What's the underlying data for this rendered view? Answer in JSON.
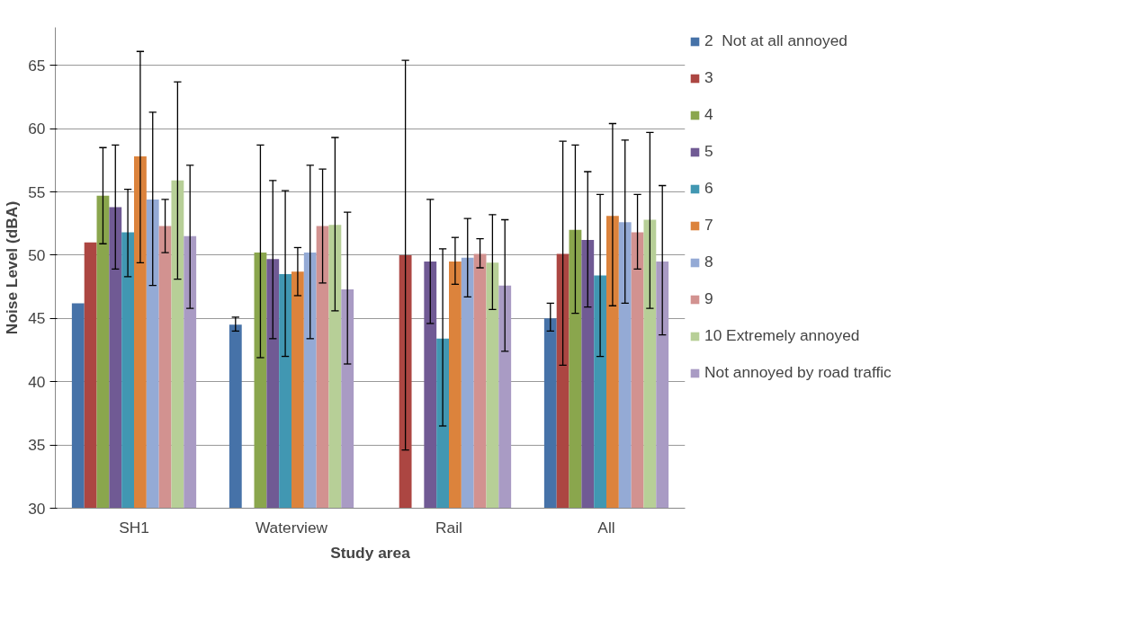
{
  "chart_data": {
    "type": "bar",
    "xlabel": "Study area",
    "ylabel": "Noise Level (dBA)",
    "categories": [
      "SH1",
      "Waterview",
      "Rail",
      "All"
    ],
    "ylim": [
      30,
      68
    ],
    "yticks": [
      30,
      35,
      40,
      45,
      50,
      55,
      60,
      65
    ],
    "grid": "y",
    "legend": "right",
    "series": [
      {
        "name": "2  Not at all annoyed",
        "color": "#4672a8",
        "values": [
          46.2,
          44.5,
          null,
          45.0
        ],
        "errors": [
          null,
          [
            44.0,
            45.1
          ],
          null,
          [
            44.0,
            46.2
          ]
        ]
      },
      {
        "name": "3",
        "color": "#ac4642",
        "values": [
          51.0,
          null,
          50.0,
          50.1
        ],
        "errors": [
          null,
          null,
          [
            34.6,
            65.4
          ],
          [
            41.3,
            59.0
          ]
        ]
      },
      {
        "name": "4",
        "color": "#8aa64d",
        "values": [
          54.7,
          50.2,
          null,
          52.0
        ],
        "errors": [
          [
            50.9,
            58.5
          ],
          [
            41.9,
            58.7
          ],
          null,
          [
            45.4,
            58.7
          ]
        ]
      },
      {
        "name": "5",
        "color": "#705a94",
        "values": [
          53.8,
          49.7,
          49.5,
          51.2
        ],
        "errors": [
          [
            48.9,
            58.7
          ],
          [
            43.4,
            55.9
          ],
          [
            44.6,
            54.4
          ],
          [
            45.9,
            56.6
          ]
        ]
      },
      {
        "name": "6",
        "color": "#4197b2",
        "values": [
          51.8,
          48.5,
          43.4,
          48.4
        ],
        "errors": [
          [
            48.3,
            55.2
          ],
          [
            42.0,
            55.1
          ],
          [
            36.5,
            50.5
          ],
          [
            42.0,
            54.8
          ]
        ]
      },
      {
        "name": "7",
        "color": "#dc833c",
        "values": [
          57.8,
          48.7,
          49.5,
          53.1
        ],
        "errors": [
          [
            49.4,
            66.1
          ],
          [
            46.8,
            50.6
          ],
          [
            47.7,
            51.4
          ],
          [
            46.0,
            60.4
          ]
        ]
      },
      {
        "name": "8",
        "color": "#94aad5",
        "values": [
          54.4,
          50.2,
          49.8,
          52.6
        ],
        "errors": [
          [
            47.6,
            61.3
          ],
          [
            43.4,
            57.1
          ],
          [
            46.7,
            52.9
          ],
          [
            46.2,
            59.1
          ]
        ]
      },
      {
        "name": "9",
        "color": "#d29290",
        "values": [
          52.3,
          52.3,
          50.1,
          51.8
        ],
        "errors": [
          [
            50.2,
            54.4
          ],
          [
            47.8,
            56.8
          ],
          [
            49.0,
            51.3
          ],
          [
            48.9,
            54.8
          ]
        ]
      },
      {
        "name": "10 Extremely annoyed",
        "color": "#b7cf97",
        "values": [
          55.9,
          52.4,
          49.4,
          52.8
        ],
        "errors": [
          [
            48.1,
            63.7
          ],
          [
            45.6,
            59.3
          ],
          [
            45.7,
            53.2
          ],
          [
            45.8,
            59.7
          ]
        ]
      },
      {
        "name": "Not annoyed by road traffic",
        "color": "#a99bc4",
        "values": [
          51.5,
          47.3,
          47.6,
          49.5
        ],
        "errors": [
          [
            45.8,
            57.1
          ],
          [
            41.4,
            53.4
          ],
          [
            42.4,
            52.8
          ],
          [
            43.7,
            55.5
          ]
        ]
      }
    ]
  }
}
